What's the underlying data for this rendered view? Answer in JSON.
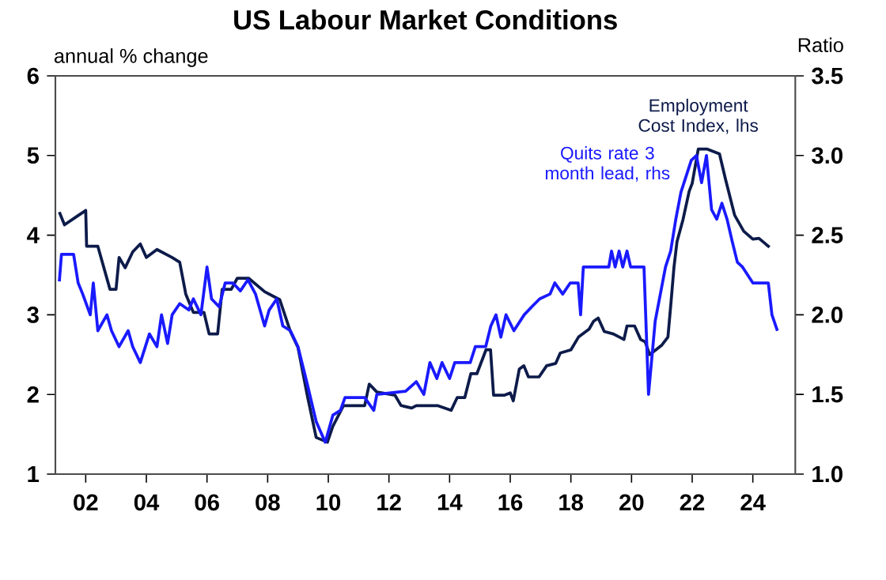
{
  "chart_data": {
    "type": "line",
    "title": "US Labour Market Conditions",
    "ylabel": "annual % change",
    "y2label": "Ratio",
    "xlim": [
      2001,
      2025.4
    ],
    "xticks": [
      {
        "value": 2002,
        "label": "02"
      },
      {
        "value": 2004,
        "label": "04"
      },
      {
        "value": 2006,
        "label": "06"
      },
      {
        "value": 2008,
        "label": "08"
      },
      {
        "value": 2010,
        "label": "10"
      },
      {
        "value": 2012,
        "label": "12"
      },
      {
        "value": 2014,
        "label": "14"
      },
      {
        "value": 2016,
        "label": "16"
      },
      {
        "value": 2018,
        "label": "18"
      },
      {
        "value": 2020,
        "label": "20"
      },
      {
        "value": 2022,
        "label": "22"
      },
      {
        "value": 2024,
        "label": "24"
      }
    ],
    "ylim": [
      1,
      6
    ],
    "yticks": [
      1,
      2,
      3,
      4,
      5,
      6
    ],
    "y2lim": [
      1,
      3.5
    ],
    "y2ticks": [
      {
        "value": 1,
        "label": "1.0"
      },
      {
        "value": 1.5,
        "label": "1.5"
      },
      {
        "value": 2,
        "label": "2.0"
      },
      {
        "value": 2.5,
        "label": "2.5"
      },
      {
        "value": 3,
        "label": "3.0"
      },
      {
        "value": 3.5,
        "label": "3.5"
      }
    ],
    "series": [
      {
        "name": "Employment Cost Index, lhs",
        "color": "#0d1b4a",
        "axis": "y",
        "x": [
          2001.13,
          2001.3,
          2001.65,
          2002.0,
          2002.03,
          2002.4,
          2002.6,
          2002.8,
          2003.0,
          2003.1,
          2003.3,
          2003.55,
          2003.8,
          2004.0,
          2004.35,
          2004.85,
          2005.1,
          2005.3,
          2005.55,
          2005.9,
          2006.07,
          2006.35,
          2006.5,
          2006.8,
          2007.0,
          2007.37,
          2007.9,
          2008.4,
          2008.75,
          2009.0,
          2009.3,
          2009.45,
          2009.6,
          2009.97,
          2010.15,
          2010.5,
          2011.2,
          2011.35,
          2011.6,
          2012.2,
          2012.4,
          2012.75,
          2012.9,
          2013.6,
          2014.05,
          2014.25,
          2014.5,
          2014.7,
          2014.9,
          2015.2,
          2015.35,
          2015.45,
          2015.8,
          2016.0,
          2016.1,
          2016.3,
          2016.45,
          2016.6,
          2016.95,
          2017.2,
          2017.5,
          2017.65,
          2018.0,
          2018.25,
          2018.6,
          2018.75,
          2018.9,
          2019.1,
          2019.4,
          2019.75,
          2019.85,
          2020.1,
          2020.3,
          2020.45,
          2020.6,
          2020.8,
          2021.0,
          2021.2,
          2021.3,
          2021.4,
          2021.5,
          2021.7,
          2021.9,
          2022.0,
          2022.2,
          2022.5,
          2022.9,
          2023.1,
          2023.4,
          2023.7,
          2024.0,
          2024.2,
          2024.45,
          2024.55
        ],
        "values": [
          4.29,
          4.13,
          4.22,
          4.31,
          3.86,
          3.86,
          3.59,
          3.32,
          3.32,
          3.72,
          3.59,
          3.79,
          3.89,
          3.72,
          3.82,
          3.72,
          3.66,
          3.26,
          3.03,
          3.03,
          2.76,
          2.76,
          3.32,
          3.32,
          3.46,
          3.46,
          3.29,
          3.19,
          2.79,
          2.59,
          2.0,
          1.73,
          1.46,
          1.4,
          1.6,
          1.86,
          1.86,
          2.13,
          2.03,
          1.99,
          1.86,
          1.83,
          1.86,
          1.86,
          1.8,
          1.96,
          1.96,
          2.26,
          2.26,
          2.56,
          2.56,
          1.99,
          1.99,
          2.02,
          1.92,
          2.32,
          2.36,
          2.22,
          2.22,
          2.36,
          2.39,
          2.52,
          2.56,
          2.72,
          2.82,
          2.92,
          2.96,
          2.79,
          2.76,
          2.69,
          2.86,
          2.86,
          2.69,
          2.66,
          2.5,
          2.56,
          2.62,
          2.72,
          3.15,
          3.6,
          3.92,
          4.2,
          4.55,
          4.65,
          5.08,
          5.08,
          5.02,
          4.7,
          4.25,
          4.05,
          3.95,
          3.96,
          3.88,
          3.85
        ]
      },
      {
        "name": "Quits rate 3 month lead, rhs",
        "color": "#1a1aff",
        "axis": "y2",
        "x": [
          2001.13,
          2001.2,
          2001.6,
          2001.75,
          2001.9,
          2002.15,
          2002.25,
          2002.4,
          2002.7,
          2002.85,
          2003.1,
          2003.4,
          2003.55,
          2003.8,
          2004.1,
          2004.35,
          2004.5,
          2004.7,
          2004.85,
          2005.1,
          2005.4,
          2005.55,
          2005.8,
          2006.0,
          2006.15,
          2006.4,
          2006.6,
          2006.85,
          2007.1,
          2007.35,
          2007.6,
          2007.9,
          2008.05,
          2008.3,
          2008.5,
          2008.75,
          2009.0,
          2009.3,
          2009.6,
          2009.9,
          2010.15,
          2010.4,
          2010.55,
          2011.2,
          2011.5,
          2011.6,
          2012.55,
          2012.9,
          2013.15,
          2013.35,
          2013.58,
          2013.75,
          2014.0,
          2014.17,
          2014.68,
          2014.85,
          2015.19,
          2015.36,
          2015.53,
          2015.69,
          2015.86,
          2016.12,
          2016.46,
          2016.71,
          2016.97,
          2017.31,
          2017.47,
          2017.73,
          2017.98,
          2018.24,
          2018.32,
          2018.41,
          2019.25,
          2019.34,
          2019.46,
          2019.59,
          2019.71,
          2019.85,
          2019.97,
          2020.41,
          2020.56,
          2020.78,
          2020.95,
          2021.12,
          2021.29,
          2021.46,
          2021.63,
          2021.8,
          2021.97,
          2022.14,
          2022.31,
          2022.47,
          2022.64,
          2022.81,
          2022.98,
          2023.15,
          2023.32,
          2023.49,
          2023.66,
          2024.0,
          2024.51,
          2024.63,
          2024.81
        ],
        "values": [
          2.21,
          2.38,
          2.38,
          2.2,
          2.13,
          2.0,
          2.2,
          1.9,
          2.0,
          1.9,
          1.8,
          1.9,
          1.8,
          1.7,
          1.88,
          1.8,
          2.0,
          1.82,
          2.0,
          2.07,
          2.03,
          2.1,
          2.0,
          2.3,
          2.1,
          2.05,
          2.2,
          2.2,
          2.15,
          2.22,
          2.13,
          1.93,
          2.03,
          2.1,
          1.93,
          1.9,
          1.8,
          1.57,
          1.33,
          1.2,
          1.37,
          1.4,
          1.48,
          1.48,
          1.4,
          1.5,
          1.52,
          1.58,
          1.5,
          1.7,
          1.6,
          1.7,
          1.6,
          1.7,
          1.7,
          1.8,
          1.8,
          1.93,
          2.0,
          1.86,
          2.0,
          1.9,
          2.0,
          2.05,
          2.1,
          2.13,
          2.2,
          2.13,
          2.2,
          2.2,
          2.0,
          2.3,
          2.3,
          2.4,
          2.3,
          2.4,
          2.3,
          2.4,
          2.3,
          2.3,
          1.5,
          1.96,
          2.13,
          2.3,
          2.4,
          2.6,
          2.77,
          2.87,
          2.97,
          3.0,
          2.83,
          3.0,
          2.66,
          2.6,
          2.7,
          2.6,
          2.46,
          2.33,
          2.3,
          2.2,
          2.2,
          2.0,
          1.9
        ]
      }
    ]
  }
}
